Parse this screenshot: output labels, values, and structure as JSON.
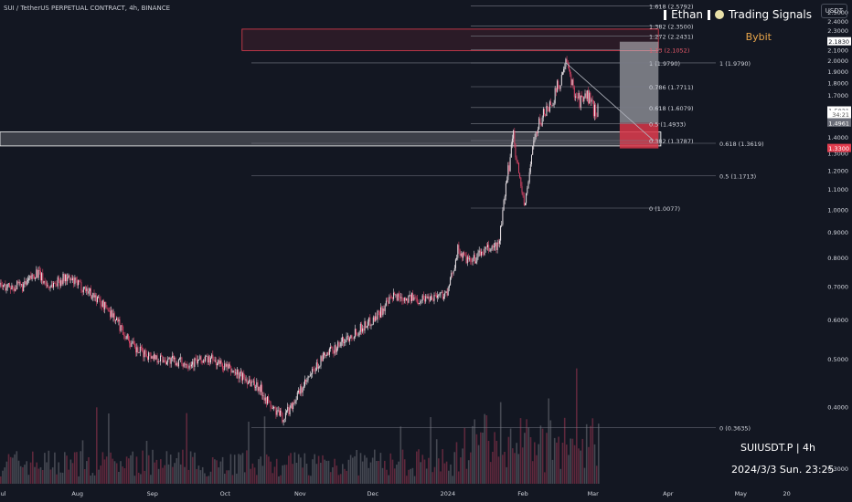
{
  "header": {
    "symbol_title": "SUI / TetherUS PERPETUAL CONTRACT, 4h, BINANCE",
    "brand_name": "Ethan",
    "brand_suffix": "Trading Signals",
    "exchange": "Bybit",
    "unit": "USDT"
  },
  "footer": {
    "ticker_line": "SUIUSDT.P | 4h",
    "datetime_line": "2024/3/3 Sun. 23:25"
  },
  "colors": {
    "background": "#131722",
    "candle_up": "#e9e2e6",
    "candle_down": "#d94466",
    "zone_red": "#e23d4f",
    "zone_white": "#ffffff",
    "fib_line": "#787b86",
    "axis_text": "#d1d4dc",
    "current_price_badge": "#e23d4f"
  },
  "chart_data": {
    "type": "candlestick",
    "log_scale": true,
    "ylim": [
      0.28,
      2.65
    ],
    "y_ticks": [
      "2.5000",
      "2.4000",
      "2.3000",
      "2.2000",
      "2.1000",
      "2.0000",
      "1.9000",
      "1.8000",
      "1.7000",
      "1.6000",
      "1.5000",
      "1.4000",
      "1.3000",
      "1.2000",
      "1.1000",
      "1.0000",
      "0.9000",
      "0.8000",
      "0.7000",
      "0.6000",
      "0.5000",
      "0.4000",
      "0.3000"
    ],
    "x_ticks": [
      "Jul",
      "Aug",
      "Sep",
      "Oct",
      "Nov",
      "Dec",
      "2024",
      "Feb",
      "Mar",
      "Apr",
      "May",
      "20"
    ],
    "x_tick_dates": [
      "2023-07-01",
      "2023-08-01",
      "2023-09-01",
      "2023-10-01",
      "2023-11-01",
      "2023-12-01",
      "2024-01-01",
      "2024-02-01",
      "2024-03-01",
      "2024-04-01",
      "2024-05-01",
      "2024-05-20"
    ],
    "x_range": [
      "2023-06-30",
      "2024-06-02"
    ],
    "price_path": [
      [
        "2023-06-30",
        0.7
      ],
      [
        "2023-07-10",
        0.7
      ],
      [
        "2023-07-15",
        0.75
      ],
      [
        "2023-07-20",
        0.7
      ],
      [
        "2023-07-27",
        0.73
      ],
      [
        "2023-08-05",
        0.69
      ],
      [
        "2023-08-15",
        0.62
      ],
      [
        "2023-08-25",
        0.52
      ],
      [
        "2023-09-05",
        0.5
      ],
      [
        "2023-09-15",
        0.49
      ],
      [
        "2023-09-25",
        0.5
      ],
      [
        "2023-10-05",
        0.47
      ],
      [
        "2023-10-15",
        0.44
      ],
      [
        "2023-10-20",
        0.4
      ],
      [
        "2023-10-25",
        0.38
      ],
      [
        "2023-11-01",
        0.43
      ],
      [
        "2023-11-10",
        0.5
      ],
      [
        "2023-11-20",
        0.55
      ],
      [
        "2023-12-01",
        0.6
      ],
      [
        "2023-12-10",
        0.67
      ],
      [
        "2023-12-20",
        0.66
      ],
      [
        "2024-01-01",
        0.68
      ],
      [
        "2024-01-05",
        0.83
      ],
      [
        "2024-01-10",
        0.78
      ],
      [
        "2024-01-15",
        0.82
      ],
      [
        "2024-01-22",
        0.85
      ],
      [
        "2024-01-26",
        1.2
      ],
      [
        "2024-01-28",
        1.45
      ],
      [
        "2024-01-30",
        1.2
      ],
      [
        "2024-02-02",
        1.01
      ],
      [
        "2024-02-05",
        1.35
      ],
      [
        "2024-02-09",
        1.55
      ],
      [
        "2024-02-13",
        1.65
      ],
      [
        "2024-02-16",
        1.8
      ],
      [
        "2024-02-19",
        1.97
      ],
      [
        "2024-02-22",
        1.75
      ],
      [
        "2024-02-25",
        1.65
      ],
      [
        "2024-02-28",
        1.7
      ],
      [
        "2024-03-01",
        1.6
      ],
      [
        "2024-03-03",
        1.5831
      ]
    ],
    "volume_profile": "bars",
    "fib_right": [
      {
        "label": "1.618 (2.5792)",
        "value": 2.5792
      },
      {
        "label": "1.382 (2.3500)",
        "value": 2.35
      },
      {
        "label": "1.272 (2.2431)",
        "value": 2.2431
      },
      {
        "label": "1.13 (2.1052)",
        "value": 2.1052
      },
      {
        "label": "1 (1.9790)",
        "value": 1.979
      },
      {
        "label": "0.786 (1.7711)",
        "value": 1.7711
      },
      {
        "label": "0.618 (1.6079)",
        "value": 1.6079
      },
      {
        "label": "0.5 (1.4933)",
        "value": 1.4933
      },
      {
        "label": "0.382 (1.3787)",
        "value": 1.3787
      },
      {
        "label": "0 (1.0077)",
        "value": 1.0077
      }
    ],
    "fib_left": [
      {
        "label": "1 (1.9790)",
        "value": 1.979
      },
      {
        "label": "0.618 (1.3619)",
        "value": 1.3619
      },
      {
        "label": "0.5 (1.1713)",
        "value": 1.1713
      },
      {
        "label": "0 (0.3635)",
        "value": 0.3635
      }
    ],
    "zones": [
      {
        "name": "supply-zone",
        "color": "red",
        "from_date": "2023-10-08",
        "to_date": "2024-03-28",
        "y_low": 2.095,
        "y_high": 2.315
      },
      {
        "name": "support-zone",
        "color": "white",
        "from_date": "2023-06-30",
        "to_date": "2024-03-29",
        "y_low": 1.345,
        "y_high": 1.435
      },
      {
        "name": "target-zone",
        "color": "gray",
        "from_date": "2024-03-12",
        "to_date": "2024-03-28",
        "y_low": 1.4961,
        "y_high": 2.183
      },
      {
        "name": "stop-zone",
        "color": "red",
        "from_date": "2024-03-12",
        "to_date": "2024-03-28",
        "y_low": 1.33,
        "y_high": 1.4961
      }
    ],
    "trendline": [
      [
        "2024-02-19",
        1.975
      ],
      [
        "2024-03-26",
        1.38
      ]
    ],
    "price_labels": [
      {
        "text": "2.1830",
        "value": 2.183,
        "style": "white"
      },
      {
        "text": "1.5831",
        "value": 1.5831,
        "style": "white"
      },
      {
        "text": "34:21",
        "value": 1.555,
        "style": "white-sub"
      },
      {
        "text": "1.4961",
        "value": 1.4961,
        "style": "gray"
      },
      {
        "text": "1.3300",
        "value": 1.33,
        "style": "red"
      }
    ]
  }
}
